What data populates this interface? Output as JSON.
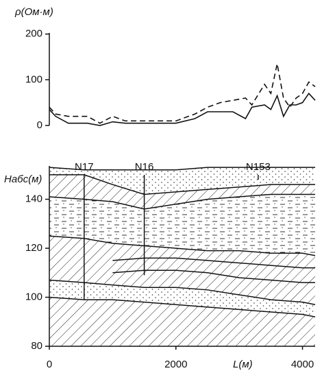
{
  "chart_data": [
    {
      "type": "line",
      "ylabel": "ρ(Ом·м)",
      "x": [
        0,
        100,
        300,
        600,
        800,
        1000,
        1200,
        1500,
        2000,
        2300,
        2500,
        2700,
        2900,
        3100,
        3200,
        3400,
        3500,
        3600,
        3700,
        3800,
        3900,
        4000,
        4100,
        4200
      ],
      "series": [
        {
          "color": "#111",
          "dash": "solid",
          "values": [
            35,
            20,
            5,
            5,
            0,
            8,
            5,
            5,
            5,
            15,
            30,
            30,
            30,
            15,
            40,
            45,
            35,
            65,
            20,
            45,
            45,
            50,
            70,
            55
          ]
        },
        {
          "color": "#111",
          "dash": "dashed",
          "values": [
            40,
            25,
            20,
            20,
            5,
            20,
            10,
            10,
            10,
            25,
            40,
            50,
            55,
            60,
            45,
            90,
            70,
            135,
            60,
            40,
            60,
            70,
            95,
            85
          ]
        }
      ],
      "xlim": [
        0,
        4200
      ],
      "ylim": [
        0,
        210
      ],
      "yticks": [
        0,
        100,
        200
      ]
    },
    {
      "type": "section",
      "ylabel": "Hабс(м)",
      "xlabel": "L(м)",
      "x": [
        0,
        550,
        1000,
        1500,
        2000,
        2500,
        3000,
        3500,
        4000,
        4200
      ],
      "boundaries": [
        [
          153,
          152,
          152,
          152,
          152,
          153,
          153,
          153,
          153,
          153
        ],
        [
          150,
          150,
          146,
          142,
          143,
          144,
          145,
          146,
          146,
          146
        ],
        [
          141,
          140,
          139,
          136,
          138,
          140,
          141,
          142,
          142,
          142
        ],
        [
          125,
          124,
          122,
          121,
          120,
          119,
          119,
          118,
          118,
          117
        ],
        [
          null,
          null,
          115,
          116,
          116,
          115,
          114,
          113,
          112,
          112
        ],
        [
          null,
          null,
          110,
          111,
          111,
          110,
          108,
          107,
          106,
          106
        ],
        [
          107,
          106,
          105,
          104,
          104,
          103,
          101,
          99,
          98,
          97
        ],
        [
          100,
          99,
          99,
          98,
          97,
          96,
          95,
          94,
          93,
          92
        ]
      ],
      "wells": [
        {
          "label": "N17",
          "x": 550,
          "bottom": 99
        },
        {
          "label": "N16",
          "x": 1500,
          "bottom": 109
        },
        {
          "label": "N153",
          "x": 3300,
          "bottom": 148
        }
      ],
      "xlim": [
        0,
        4200
      ],
      "ylim": [
        80,
        155
      ],
      "xticks": [
        0,
        2000,
        4000
      ],
      "yticks": [
        80,
        100,
        120,
        140
      ]
    }
  ]
}
